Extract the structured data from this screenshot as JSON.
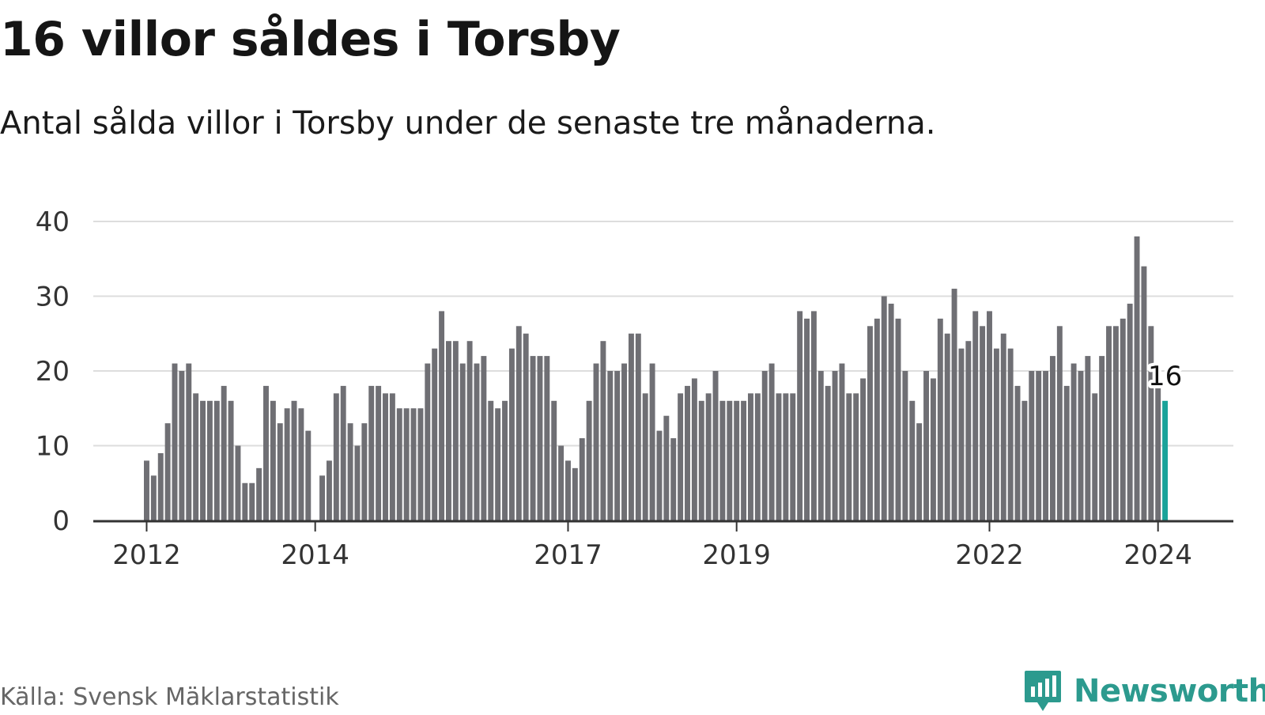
{
  "header": {
    "title": "16 villor såldes i Torsby",
    "subtitle": "Antal sålda villor i Torsby under de senaste tre månaderna."
  },
  "footer": {
    "source": "Källa: Svensk Mäklarstatistik",
    "brand": "Newsworthy",
    "brand_icon": "newsworthy-logo-icon"
  },
  "colors": {
    "bar": "#6f6f74",
    "highlight": "#1aa39a",
    "grid": "#dddddd",
    "axis": "#333333",
    "text": "#333333",
    "brand": "#2c9a8e"
  },
  "chart_data": {
    "type": "bar",
    "title": "16 villor såldes i Torsby",
    "subtitle": "Antal sålda villor i Torsby under de senaste tre månaderna.",
    "xlabel": "",
    "ylabel": "",
    "ylim": [
      0,
      40
    ],
    "yticks": [
      0,
      10,
      20,
      30,
      40
    ],
    "grid": true,
    "start": "2012-01",
    "xticks": [
      {
        "label": "2012",
        "month_index": 0
      },
      {
        "label": "2014",
        "month_index": 24
      },
      {
        "label": "2017",
        "month_index": 60
      },
      {
        "label": "2019",
        "month_index": 84
      },
      {
        "label": "2022",
        "month_index": 120
      },
      {
        "label": "2024",
        "month_index": 144
      }
    ],
    "values": [
      8,
      6,
      9,
      13,
      21,
      20,
      21,
      17,
      16,
      16,
      16,
      18,
      16,
      10,
      5,
      5,
      7,
      18,
      16,
      13,
      15,
      16,
      15,
      12,
      null,
      6,
      8,
      17,
      18,
      13,
      10,
      13,
      18,
      18,
      17,
      17,
      15,
      15,
      15,
      15,
      21,
      23,
      28,
      24,
      24,
      21,
      24,
      21,
      22,
      16,
      15,
      16,
      23,
      26,
      25,
      22,
      22,
      22,
      16,
      10,
      8,
      7,
      11,
      16,
      21,
      24,
      20,
      20,
      21,
      25,
      25,
      17,
      21,
      12,
      14,
      11,
      17,
      18,
      19,
      16,
      17,
      20,
      16,
      16,
      16,
      16,
      17,
      17,
      20,
      21,
      17,
      17,
      17,
      28,
      27,
      28,
      20,
      18,
      20,
      21,
      17,
      17,
      19,
      26,
      27,
      30,
      29,
      27,
      20,
      16,
      13,
      20,
      19,
      27,
      25,
      31,
      23,
      24,
      28,
      26,
      28,
      23,
      25,
      23,
      18,
      16,
      20,
      20,
      20,
      22,
      26,
      18,
      21,
      20,
      22,
      17,
      22,
      26,
      26,
      27,
      29,
      38,
      34,
      26,
      18,
      16
    ],
    "highlight_index": 145,
    "highlight_label": "16"
  }
}
